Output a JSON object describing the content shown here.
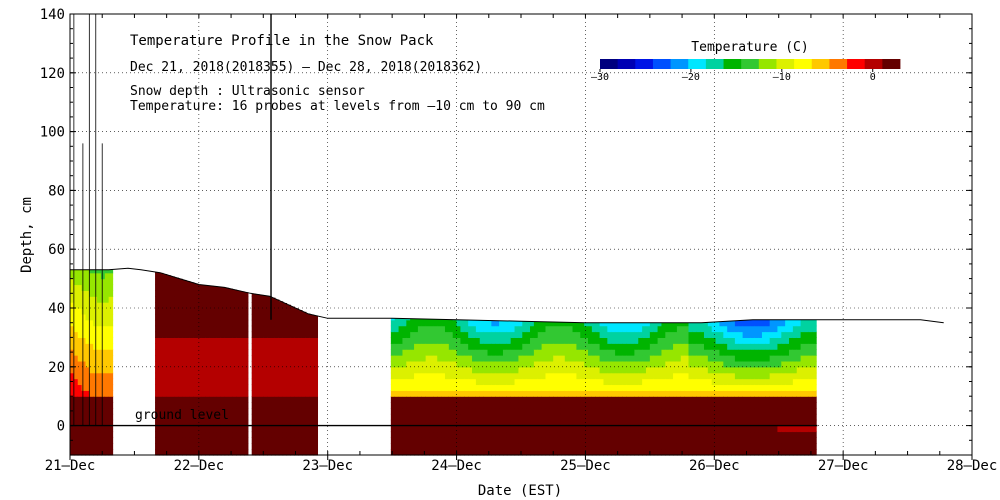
{
  "chart_data": {
    "type": "heatmap",
    "title": "Temperature Profile in the Snow Pack",
    "date_range": "Dec 21, 2018(2018355) – Dec 28, 2018(2018362)",
    "notes": [
      "Snow depth : Ultrasonic sensor",
      "Temperature: 16 probes at levels from –10 cm to 90 cm"
    ],
    "xlabel": "Date (EST)",
    "ylabel": "Depth, cm",
    "x_ticks": [
      "21–Dec",
      "22–Dec",
      "23–Dec",
      "24–Dec",
      "25–Dec",
      "26–Dec",
      "27–Dec",
      "28–Dec"
    ],
    "xlim_days": [
      0,
      7
    ],
    "ylim": [
      -10,
      140
    ],
    "y_ticks": [
      0,
      20,
      40,
      60,
      80,
      100,
      120,
      140
    ],
    "grid": true,
    "ground_level_label": "ground level",
    "ground_level_value": 0,
    "legend": {
      "title": "Temperature (C)",
      "placement": "top-right",
      "range": [
        -30,
        3
      ],
      "tick_values": [
        -30,
        -20,
        -10,
        0
      ],
      "tick_labels": [
        "–30",
        "–20",
        "–10",
        "0"
      ],
      "colors": [
        "#00007f",
        "#0000b4",
        "#0014e6",
        "#0050ff",
        "#0096ff",
        "#00e6ff",
        "#00d2a0",
        "#00b400",
        "#32c832",
        "#96e600",
        "#dcf000",
        "#ffff00",
        "#ffc800",
        "#ff7800",
        "#ff0000",
        "#b40000",
        "#640000"
      ]
    },
    "snow_depth": [
      {
        "day": 0.0,
        "depth": 53
      },
      {
        "day": 0.3,
        "depth": 53
      },
      {
        "day": 0.45,
        "depth": 53.5
      },
      {
        "day": 0.55,
        "depth": 53
      },
      {
        "day": 0.7,
        "depth": 52
      },
      {
        "day": 0.85,
        "depth": 50
      },
      {
        "day": 1.0,
        "depth": 48
      },
      {
        "day": 1.2,
        "depth": 47
      },
      {
        "day": 1.4,
        "depth": 45
      },
      {
        "day": 1.55,
        "depth": 44
      },
      {
        "day": 1.7,
        "depth": 41
      },
      {
        "day": 1.85,
        "depth": 38
      },
      {
        "day": 2.0,
        "depth": 36.5
      },
      {
        "day": 2.5,
        "depth": 36.5
      },
      {
        "day": 3.0,
        "depth": 36
      },
      {
        "day": 3.5,
        "depth": 35.5
      },
      {
        "day": 4.0,
        "depth": 35
      },
      {
        "day": 4.5,
        "depth": 35
      },
      {
        "day": 4.9,
        "depth": 35
      },
      {
        "day": 5.3,
        "depth": 36
      },
      {
        "day": 5.8,
        "depth": 36
      },
      {
        "day": 6.3,
        "depth": 36
      },
      {
        "day": 6.6,
        "depth": 36
      },
      {
        "day": 6.78,
        "depth": 35
      }
    ]
  }
}
